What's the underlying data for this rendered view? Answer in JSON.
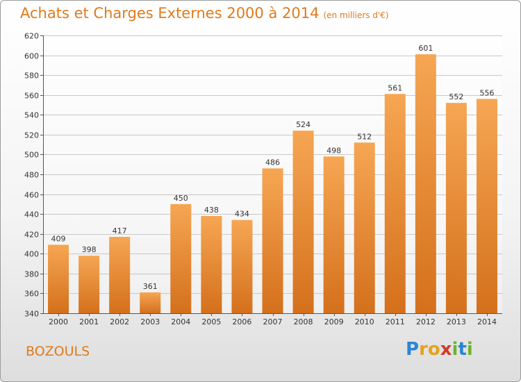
{
  "header": {
    "title": "Achats et Charges Externes 2000 à 2014",
    "unit": "(en milliers d'€)"
  },
  "footer": {
    "place": "BOZOULS",
    "logo": [
      "P",
      "r",
      "o",
      "x",
      "i",
      "t",
      "i"
    ]
  },
  "colors": {
    "accent": "#e07a1c",
    "bar_top": "#f6a653",
    "bar_bottom": "#d4701c"
  },
  "chart_data": {
    "type": "bar",
    "title": "Achats et Charges Externes 2000 à 2014",
    "subtitle": "(en milliers d'€)",
    "categories": [
      "2000",
      "2001",
      "2002",
      "2003",
      "2004",
      "2005",
      "2006",
      "2007",
      "2008",
      "2009",
      "2010",
      "2011",
      "2012",
      "2013",
      "2014"
    ],
    "values": [
      409,
      398,
      417,
      361,
      450,
      438,
      434,
      486,
      524,
      498,
      512,
      561,
      601,
      552,
      556
    ],
    "ylim": [
      340,
      620
    ],
    "yticks": [
      340,
      360,
      380,
      400,
      420,
      440,
      460,
      480,
      500,
      520,
      540,
      560,
      580,
      600,
      620
    ],
    "grid": true,
    "data_labels": true
  }
}
